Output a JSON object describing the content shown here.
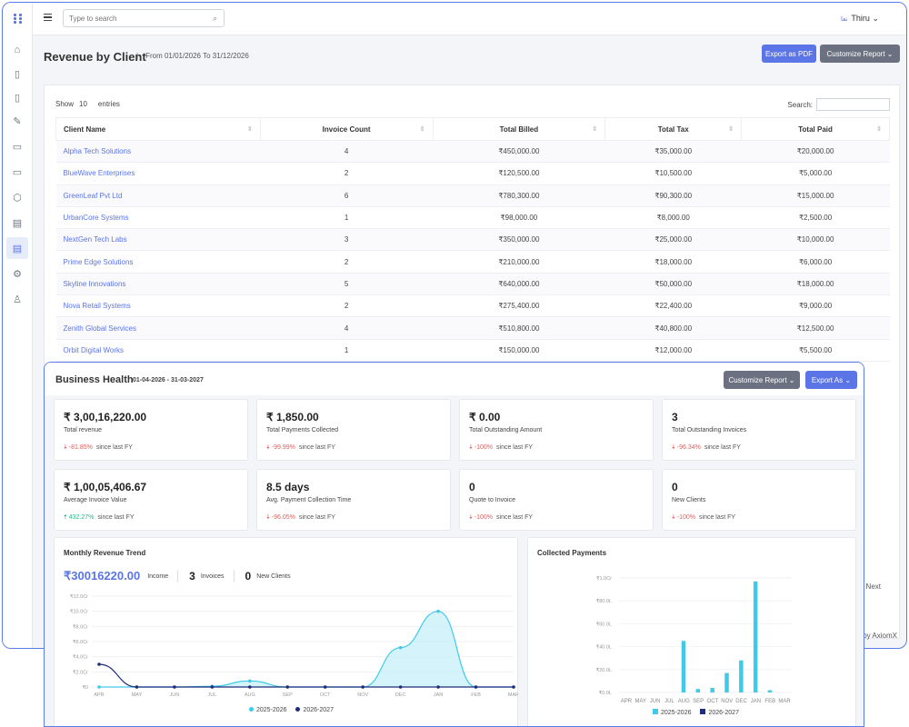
{
  "search": {
    "placeholder": "Type to search"
  },
  "user": {
    "name": "Thiru",
    "chevron": "⌄",
    "badge": "تعا"
  },
  "page": {
    "title": "Revenue by Client",
    "separator": "|",
    "date_range": "From 01/01/2026 To 31/12/2026",
    "export_label": "Export as PDF",
    "customize_label": "Customize Report ⌄"
  },
  "table": {
    "show_prefix": "Show",
    "show_count": "10",
    "show_suffix": "entries",
    "search_label": "Search:",
    "headers": [
      "Client Name",
      "Invoice Count",
      "Total Billed",
      "Total Tax",
      "Total Paid"
    ],
    "rows": [
      [
        "Alpha Tech Solutions",
        "4",
        "₹450,000.00",
        "₹35,000.00",
        "₹20,000.00"
      ],
      [
        "BlueWave Enterprises",
        "2",
        "₹120,500.00",
        "₹10,500.00",
        "₹5,000.00"
      ],
      [
        "GreenLeaf Pvt Ltd",
        "6",
        "₹780,300.00",
        "₹90,300.00",
        "₹15,000.00"
      ],
      [
        "UrbanCore Systems",
        "1",
        "₹98,000.00",
        "₹8,000.00",
        "₹2,500.00"
      ],
      [
        "NextGen Tech Labs",
        "3",
        "₹350,000.00",
        "₹25,000.00",
        "₹10,000.00"
      ],
      [
        "Prime Edge Solutions",
        "2",
        "₹210,000.00",
        "₹18,000.00",
        "₹6,000.00"
      ],
      [
        "Skyline Innovations",
        "5",
        "₹640,000.00",
        "₹50,000.00",
        "₹18,000.00"
      ],
      [
        "Nova Retail Systems",
        "2",
        "₹275,400.00",
        "₹22,400.00",
        "₹9,000.00"
      ],
      [
        "Zenith Global Services",
        "4",
        "₹510,800.00",
        "₹40,800.00",
        "₹12,500.00"
      ],
      [
        "Orbit Digital Works",
        "1",
        "₹150,000.00",
        "₹12,000.00",
        "₹5,500.00"
      ]
    ],
    "next_label": "Next"
  },
  "footer": {
    "credit": "by AxiomX"
  },
  "business": {
    "title": "Business Health",
    "date": "01-04-2026 - 31-03-2027",
    "customize_label": "Customize Report ⌄",
    "export_label": "Export As ⌄",
    "stats": [
      {
        "value": "₹ 3,00,16,220.00",
        "label": "Total revenue",
        "change": "-81.85%",
        "dir": "down",
        "since": "since last FY"
      },
      {
        "value": "₹ 1,850.00",
        "label": "Total Payments Collected",
        "change": "-99.99%",
        "dir": "down",
        "since": "since last FY"
      },
      {
        "value": "₹ 0.00",
        "label": "Total Outstanding Amount",
        "change": "-100%",
        "dir": "down",
        "since": "since last FY"
      },
      {
        "value": "3",
        "label": "Total Outstanding Invoices",
        "change": "-96.34%",
        "dir": "down",
        "since": "since last FY"
      },
      {
        "value": "₹ 1,00,05,406.67",
        "label": "Average Invoice Value",
        "change": "432.27%",
        "dir": "up",
        "since": "since last FY"
      },
      {
        "value": "8.5 days",
        "label": "Avg. Payment Collection Time",
        "change": "-96.05%",
        "dir": "down",
        "since": "since last FY"
      },
      {
        "value": "0",
        "label": "Quote to Invoice",
        "change": "-100%",
        "dir": "down",
        "since": "since last FY"
      },
      {
        "value": "0",
        "label": "New Clients",
        "change": "-100%",
        "dir": "down",
        "since": "since last FY"
      }
    ]
  },
  "trend": {
    "title": "Monthly Revenue Trend",
    "amount": "₹30016220.00",
    "income_label": "Income",
    "invoices": "3",
    "invoices_label": "Invoices",
    "new_clients": "0",
    "new_clients_label": "New Clients"
  },
  "collected": {
    "title": "Collected Payments"
  },
  "colors": {
    "accent": "#5b74e6",
    "cyan": "#3ecbe9",
    "navy": "#1f2d7a",
    "down": "#e35d5d",
    "up": "#2fb380"
  },
  "chart_data": [
    {
      "type": "area",
      "title": "Monthly Revenue Trend",
      "categories": [
        "APR",
        "MAY",
        "JUN",
        "JUL",
        "AUG",
        "SEP",
        "OCT",
        "NOV",
        "DEC",
        "JAN",
        "FEB",
        "MAR"
      ],
      "y_ticks": [
        "₹0",
        "₹2.0Cr",
        "₹4.0Cr",
        "₹6.0Cr",
        "₹8.0Cr",
        "₹10.0Cr",
        "₹12.0Cr"
      ],
      "ylim": [
        0,
        12
      ],
      "series": [
        {
          "name": "2025-2026",
          "color": "#3ecbe9",
          "values": [
            0,
            0,
            0,
            0.1,
            0.8,
            0,
            0,
            0,
            5.2,
            10.0,
            0,
            0
          ]
        },
        {
          "name": "2026-2027",
          "color": "#1f2d7a",
          "values": [
            3.0,
            0,
            0,
            0,
            0,
            0,
            0,
            0,
            0,
            0,
            0,
            0
          ]
        }
      ]
    },
    {
      "type": "bar",
      "title": "Collected Payments",
      "categories": [
        "APR",
        "MAY",
        "JUN",
        "JUL",
        "AUG",
        "SEP",
        "OCT",
        "NOV",
        "DEC",
        "JAN",
        "FEB",
        "MAR"
      ],
      "y_ticks": [
        "₹0.0L",
        "₹20.0L",
        "₹40.0L",
        "₹60.0L",
        "₹80.0L",
        "₹1.0Cr"
      ],
      "ylim": [
        0,
        100
      ],
      "series": [
        {
          "name": "2025-2026",
          "color": "#3ecbe9",
          "values": [
            0,
            0,
            0,
            0,
            45,
            3,
            4,
            17,
            28,
            97,
            2,
            0
          ]
        },
        {
          "name": "2026-2027",
          "color": "#1f2d7a",
          "values": [
            0,
            0,
            0,
            0,
            0,
            0,
            0,
            0,
            0,
            0,
            0,
            0
          ]
        }
      ]
    }
  ]
}
